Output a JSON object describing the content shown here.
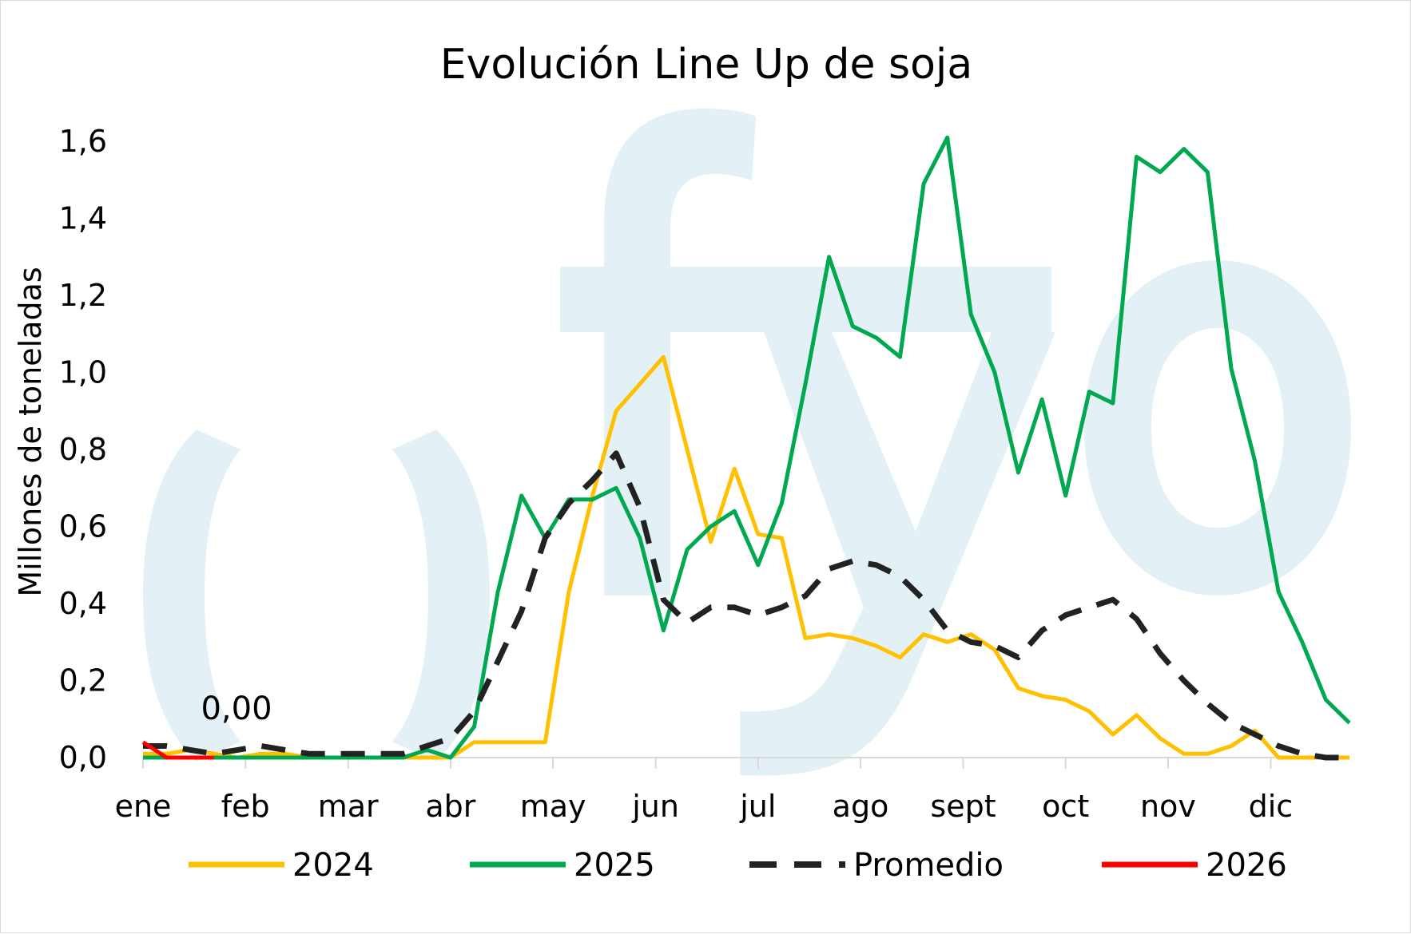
{
  "chart_data": {
    "type": "line",
    "title": "Evolución Line Up de soja",
    "ylabel": "Millones de toneladas",
    "xlabel": "",
    "ylim": [
      0,
      1.7
    ],
    "yticks": [
      "0,0",
      "0,2",
      "0,4",
      "0,6",
      "0,8",
      "1,0",
      "1,2",
      "1,4",
      "1,6"
    ],
    "ytick_values": [
      0,
      0.2,
      0.4,
      0.6,
      0.8,
      1.0,
      1.2,
      1.4,
      1.6
    ],
    "categories": [
      "ene",
      "feb",
      "mar",
      "abr",
      "may",
      "jun",
      "jul",
      "ago",
      "sept",
      "oct",
      "nov",
      "dic"
    ],
    "x_unit": "week of year (1-52)",
    "grid": false,
    "legend_position": "bottom",
    "watermark": "fyo",
    "annotation": {
      "text": "0,00",
      "series": "2026"
    },
    "series": [
      {
        "name": "2024",
        "color": "#FFC000",
        "style": "solid",
        "x": [
          1,
          2,
          3,
          4,
          5,
          6,
          7,
          8,
          9,
          10,
          11,
          12,
          13,
          14,
          15,
          16,
          17,
          18,
          19,
          20,
          21,
          22,
          23,
          24,
          25,
          26,
          27,
          28,
          29,
          30,
          31,
          32,
          33,
          34,
          35,
          36,
          37,
          38,
          39,
          40,
          41,
          42,
          43,
          44,
          45,
          46,
          47,
          48,
          49,
          50,
          51,
          52
        ],
        "values": [
          0.01,
          0.01,
          0.02,
          0.01,
          0,
          0.01,
          0.01,
          0,
          0,
          0,
          0,
          0,
          0,
          0,
          0.04,
          0.04,
          0.04,
          0.04,
          0.43,
          0.68,
          0.9,
          0.97,
          1.04,
          0.8,
          0.56,
          0.75,
          0.58,
          0.57,
          0.31,
          0.32,
          0.31,
          0.29,
          0.26,
          0.32,
          0.3,
          0.32,
          0.28,
          0.18,
          0.16,
          0.15,
          0.12,
          0.06,
          0.11,
          0.05,
          0.01,
          0.01,
          0.03,
          0.07,
          0,
          0,
          0,
          0
        ]
      },
      {
        "name": "2025",
        "color": "#00A850",
        "style": "solid",
        "x": [
          1,
          2,
          3,
          4,
          5,
          6,
          7,
          8,
          9,
          10,
          11,
          12,
          13,
          14,
          15,
          16,
          17,
          18,
          19,
          20,
          21,
          22,
          23,
          24,
          25,
          26,
          27,
          28,
          29,
          30,
          31,
          32,
          33,
          34,
          35,
          36,
          37,
          38,
          39,
          40,
          41,
          42,
          43,
          44,
          45,
          46,
          47,
          48,
          49,
          50,
          51,
          52
        ],
        "values": [
          0,
          0,
          0,
          0,
          0,
          0,
          0,
          0,
          0,
          0,
          0,
          0,
          0.02,
          0,
          0.08,
          0.43,
          0.68,
          0.57,
          0.67,
          0.67,
          0.7,
          0.57,
          0.33,
          0.54,
          0.6,
          0.64,
          0.5,
          0.66,
          0.97,
          1.3,
          1.12,
          1.09,
          1.04,
          1.49,
          1.61,
          1.15,
          1.0,
          0.74,
          0.93,
          0.68,
          0.95,
          0.92,
          1.56,
          1.52,
          1.58,
          1.52,
          1.01,
          0.77,
          0.43,
          0.3,
          0.15,
          0.09
        ]
      },
      {
        "name": "Promedio",
        "color": "#222222",
        "style": "dashed",
        "x": [
          1,
          2,
          3,
          4,
          5,
          6,
          7,
          8,
          9,
          10,
          11,
          12,
          13,
          14,
          15,
          16,
          17,
          18,
          19,
          20,
          21,
          22,
          23,
          24,
          25,
          26,
          27,
          28,
          29,
          30,
          31,
          32,
          33,
          34,
          35,
          36,
          37,
          38,
          39,
          40,
          41,
          42,
          43,
          44,
          45,
          46,
          47,
          48,
          49,
          50,
          51,
          52
        ],
        "values": [
          0.03,
          0.03,
          0.02,
          0.01,
          0.02,
          0.03,
          0.02,
          0.01,
          0.01,
          0.01,
          0.01,
          0.01,
          0.03,
          0.05,
          0.12,
          0.25,
          0.38,
          0.57,
          0.66,
          0.72,
          0.79,
          0.65,
          0.41,
          0.35,
          0.39,
          0.39,
          0.37,
          0.39,
          0.42,
          0.49,
          0.51,
          0.5,
          0.47,
          0.41,
          0.33,
          0.3,
          0.29,
          0.26,
          0.33,
          0.37,
          0.39,
          0.41,
          0.36,
          0.27,
          0.2,
          0.14,
          0.09,
          0.06,
          0.03,
          0.01,
          0,
          0
        ]
      },
      {
        "name": "2026",
        "color": "#FF0000",
        "style": "solid",
        "x": [
          1,
          2,
          3,
          4
        ],
        "values": [
          0.04,
          0,
          0,
          0
        ]
      }
    ]
  }
}
